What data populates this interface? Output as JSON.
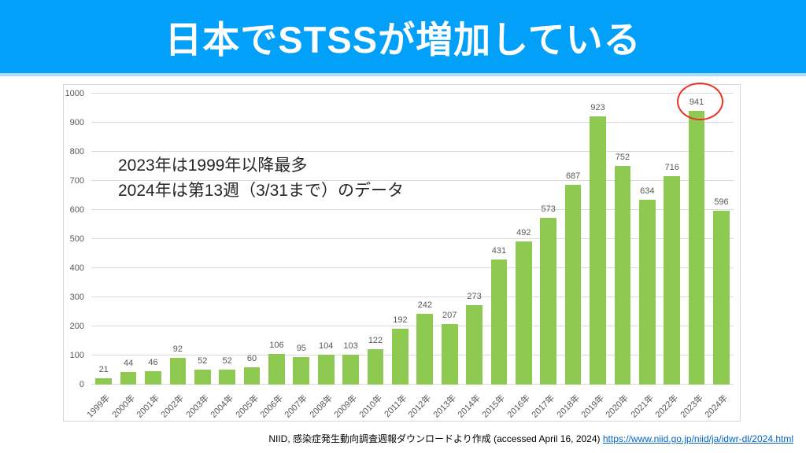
{
  "header": {
    "title": "日本でSTSSが増加している",
    "background_color": "#03A0FA",
    "text_color": "#FFFFFF"
  },
  "annotation": {
    "lines": [
      "2023年は1999年以降最多",
      "2024年は第13週（3/31まで）のデータ"
    ]
  },
  "highlight": {
    "shape": "red-circle",
    "around_year": "2023年",
    "around_value": 941,
    "color": "#EE3124"
  },
  "footer": {
    "text": "NIID, 感染症発生動向調査週報ダウンロードより作成 (accessed April 16, 2024)",
    "link": "https://www.niid.go.jp/niid/ja/idwr-dl/2024.html",
    "link_color": "#0563C1"
  },
  "chart_data": {
    "type": "bar",
    "categories": [
      "1999年",
      "2000年",
      "2001年",
      "2002年",
      "2003年",
      "2004年",
      "2005年",
      "2006年",
      "2007年",
      "2008年",
      "2009年",
      "2010年",
      "2011年",
      "2012年",
      "2013年",
      "2014年",
      "2015年",
      "2016年",
      "2017年",
      "2018年",
      "2019年",
      "2020年",
      "2021年",
      "2022年",
      "2023年",
      "2024年"
    ],
    "values": [
      21,
      44,
      46,
      92,
      52,
      52,
      60,
      106,
      95,
      104,
      103,
      122,
      192,
      242,
      207,
      273,
      431,
      492,
      573,
      687,
      923,
      752,
      634,
      716,
      941,
      596
    ],
    "title": "",
    "xlabel": "",
    "ylabel": "",
    "ylim": [
      0,
      1000
    ],
    "ytick_interval": 100,
    "grid": true,
    "legend": "none",
    "bar_color": "#8EC952",
    "tick_label_color": "#595959",
    "gridline_color": "#D9D9D9"
  }
}
